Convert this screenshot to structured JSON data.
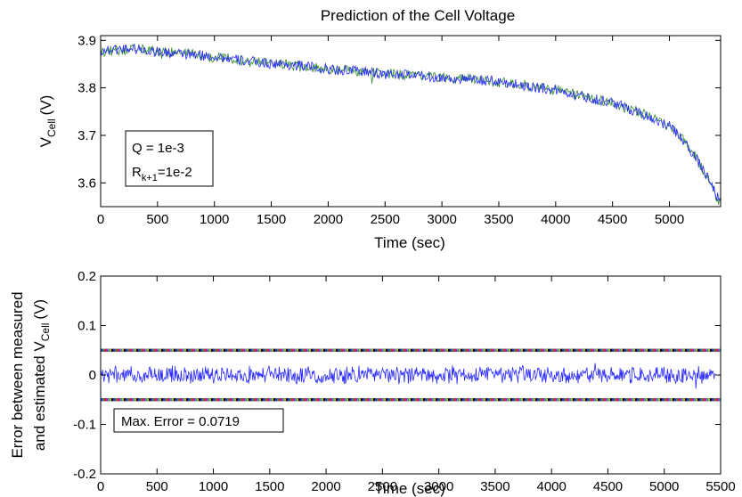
{
  "chart_data": [
    {
      "type": "line",
      "title": "Prediction of the Cell Voltage",
      "xlabel": "Time (sec)",
      "ylabel_main": "V",
      "ylabel_sub": "Cell",
      "ylabel_unit": "(V)",
      "xlim": [
        0,
        5450
      ],
      "ylim": [
        3.55,
        3.91
      ],
      "xticks": [
        0,
        500,
        1000,
        1500,
        2000,
        2500,
        3000,
        3500,
        4000,
        4500,
        5000
      ],
      "xtick_labels": [
        "0",
        "500",
        "1000",
        "1500",
        "2000",
        "2500",
        "3000",
        "3500",
        "4000",
        "4500",
        "5000"
      ],
      "yticks": [
        3.6,
        3.7,
        3.8,
        3.9
      ],
      "ytick_labels": [
        "3.6",
        "3.7",
        "3.8",
        "3.9"
      ],
      "grid": false,
      "annotation": {
        "line1": "Q = 1e-3",
        "line2_main": "R",
        "line2_sub": "k+1",
        "line2_rest": "=1e-2"
      },
      "series": [
        {
          "color": "#2e8b2e",
          "x": [
            0,
            250,
            500,
            750,
            1000,
            1250,
            1500,
            1750,
            2000,
            2250,
            2500,
            2750,
            3000,
            3250,
            3500,
            3750,
            4000,
            4250,
            4500,
            4750,
            5000,
            5100,
            5200,
            5300,
            5400,
            5450
          ],
          "y": [
            3.875,
            3.882,
            3.878,
            3.872,
            3.865,
            3.858,
            3.852,
            3.846,
            3.84,
            3.835,
            3.83,
            3.826,
            3.822,
            3.818,
            3.812,
            3.805,
            3.795,
            3.782,
            3.768,
            3.748,
            3.718,
            3.695,
            3.665,
            3.625,
            3.58,
            3.555
          ]
        },
        {
          "color": "#2a2aff",
          "x": [
            0,
            250,
            500,
            750,
            1000,
            1250,
            1500,
            1750,
            2000,
            2250,
            2500,
            2750,
            3000,
            3250,
            3500,
            3750,
            4000,
            4250,
            4500,
            4750,
            5000,
            5100,
            5200,
            5300,
            5400,
            5450
          ],
          "y": [
            3.878,
            3.884,
            3.876,
            3.87,
            3.866,
            3.857,
            3.851,
            3.847,
            3.839,
            3.836,
            3.829,
            3.827,
            3.821,
            3.817,
            3.813,
            3.804,
            3.796,
            3.781,
            3.769,
            3.747,
            3.719,
            3.696,
            3.664,
            3.626,
            3.581,
            3.556
          ]
        }
      ]
    },
    {
      "type": "line",
      "xlabel": "Time (sec)",
      "ylabel_line1": "Error between measured",
      "ylabel_line2_main": "and estimated V",
      "ylabel_line2_sub": "Cell",
      "ylabel_line2_unit": "(V)",
      "xlim": [
        0,
        5500
      ],
      "ylim": [
        -0.2,
        0.2
      ],
      "xticks": [
        0,
        500,
        1000,
        1500,
        2000,
        2500,
        3000,
        3500,
        4000,
        4500,
        5000,
        5500
      ],
      "xtick_labels": [
        "0",
        "500",
        "1000",
        "1500",
        "2000",
        "2500",
        "3000",
        "3500",
        "4000",
        "4500",
        "5000",
        "5500"
      ],
      "yticks": [
        -0.2,
        -0.1,
        0,
        0.1,
        0.2
      ],
      "ytick_labels": [
        "-0.2",
        "-0.1",
        "0",
        "0.1",
        "0.2"
      ],
      "grid": false,
      "annotation": "Max. Error = 0.0719",
      "bounds": [
        0.05,
        -0.05
      ],
      "error_amplitude": 0.02,
      "series": [
        {
          "color": "#2a2aff",
          "x_range": [
            0,
            5450
          ]
        }
      ]
    }
  ]
}
